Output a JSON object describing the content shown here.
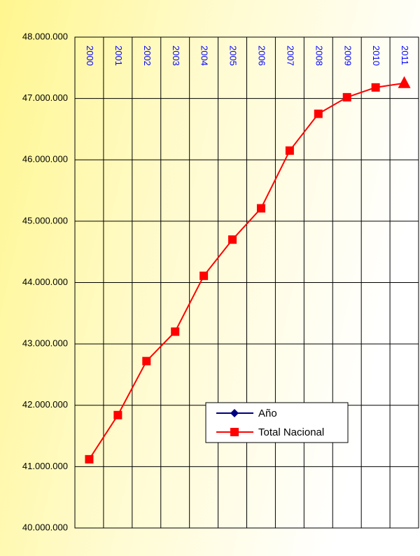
{
  "chart_data": {
    "type": "line",
    "categories": [
      "2000",
      "2001",
      "2002",
      "2003",
      "2004",
      "2005",
      "2006",
      "2007",
      "2008",
      "2009",
      "2010",
      "2011"
    ],
    "series": [
      {
        "name": "Año",
        "color": "#000080",
        "marker": "diamond",
        "values": [
          null,
          null,
          null,
          null,
          null,
          null,
          null,
          null,
          null,
          null,
          null,
          null
        ]
      },
      {
        "name": "Total Nacional",
        "color": "#ff0000",
        "marker": "square",
        "values": [
          41120000,
          41840000,
          42720000,
          43200000,
          44110000,
          44700000,
          45210000,
          46150000,
          46750000,
          47020000,
          47180000,
          47250000
        ]
      }
    ],
    "ylim": [
      40000000,
      48000000
    ],
    "yticks": [
      {
        "value": 40000000,
        "label": "40.000.000"
      },
      {
        "value": 41000000,
        "label": "41.000.000"
      },
      {
        "value": 42000000,
        "label": "42.000.000"
      },
      {
        "value": 43000000,
        "label": "43.000.000"
      },
      {
        "value": 44000000,
        "label": "44.000.000"
      },
      {
        "value": 45000000,
        "label": "45.000.000"
      },
      {
        "value": 46000000,
        "label": "46.000.000"
      },
      {
        "value": 47000000,
        "label": "47.000.000"
      },
      {
        "value": 48000000,
        "label": "48.000.000"
      }
    ],
    "grid": true,
    "category_label_color": "#0000ff"
  }
}
